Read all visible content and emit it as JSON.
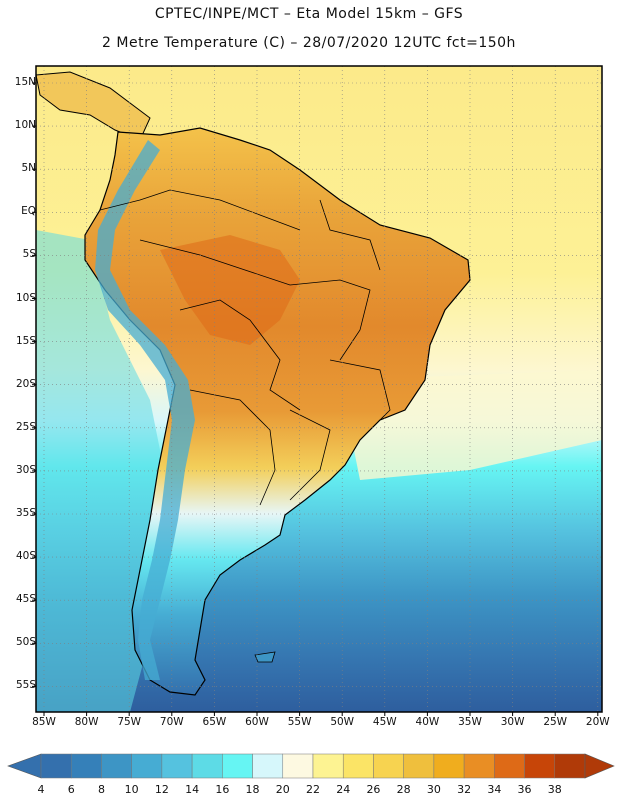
{
  "header": {
    "line1": "CPTEC/INPE/MCT –  Eta Model 15km – GFS",
    "line2": "2 Metre Temperature (C) – 28/07/2020 12UTC fct=150h"
  },
  "lat_labels": [
    "15N",
    "10N",
    "5N",
    "EQ",
    "5S",
    "10S",
    "15S",
    "20S",
    "25S",
    "30S",
    "35S",
    "40S",
    "45S",
    "50S",
    "55S"
  ],
  "lon_labels": [
    "85W",
    "80W",
    "75W",
    "70W",
    "65W",
    "60W",
    "55W",
    "50W",
    "45W",
    "40W",
    "35W",
    "30W",
    "25W",
    "20W"
  ],
  "colorbar": {
    "labels": [
      "4",
      "6",
      "8",
      "10",
      "12",
      "14",
      "16",
      "18",
      "20",
      "22",
      "24",
      "26",
      "28",
      "30",
      "32",
      "34",
      "36",
      "38"
    ],
    "colors": [
      "#3470ad",
      "#3580b9",
      "#3d95c5",
      "#46acd3",
      "#55c2df",
      "#5ddbe6",
      "#66f5f3",
      "#d6f7fb",
      "#fdf9e1",
      "#fdf392",
      "#fbe466",
      "#f7d350",
      "#efbf3d",
      "#f0ad1e",
      "#e98e24",
      "#de6a17",
      "#c74508",
      "#b03a08"
    ]
  },
  "map_colors": {
    "ocean_warm": "#fcea8a",
    "land_hot": "#e38f2e",
    "ocean_cold": "#305fa0",
    "border": "#000000"
  }
}
